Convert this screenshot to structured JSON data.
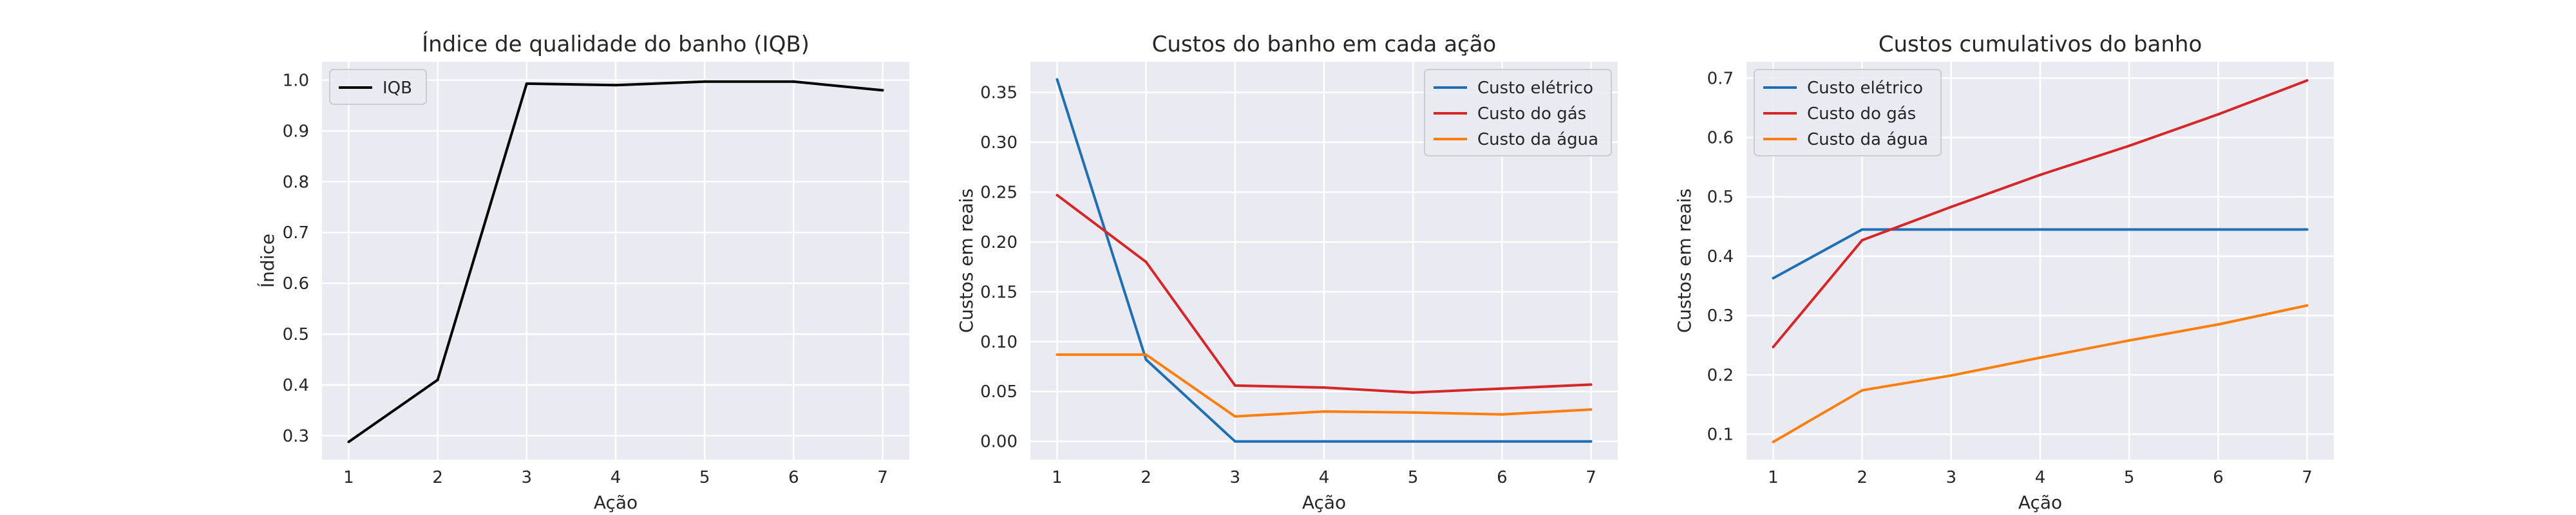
{
  "chart_data": [
    {
      "type": "line",
      "title": "Índice de qualidade do banho (IQB)",
      "xlabel": "Ação",
      "ylabel": "Índice",
      "x": [
        1,
        2,
        3,
        4,
        5,
        6,
        7
      ],
      "xlim": [
        0.7,
        7.3
      ],
      "ylim": [
        0.253,
        1.036
      ],
      "yticks": [
        0.3,
        0.4,
        0.5,
        0.6,
        0.7,
        0.8,
        0.9,
        1.0
      ],
      "ytick_labels": [
        "0.3",
        "0.4",
        "0.5",
        "0.6",
        "0.7",
        "0.8",
        "0.9",
        "1.0"
      ],
      "grid": true,
      "legend": "top-left",
      "series": [
        {
          "name": "IQB",
          "color": "#000000",
          "values": [
            0.288,
            0.41,
            0.993,
            0.99,
            0.997,
            0.997,
            0.98
          ]
        }
      ]
    },
    {
      "type": "line",
      "title": "Custos do banho em cada ação",
      "xlabel": "Ação",
      "ylabel": "Custos em reais",
      "x": [
        1,
        2,
        3,
        4,
        5,
        6,
        7
      ],
      "xlim": [
        0.7,
        7.3
      ],
      "ylim": [
        -0.0183,
        0.3807
      ],
      "yticks": [
        0.0,
        0.05,
        0.1,
        0.15,
        0.2,
        0.25,
        0.3,
        0.35
      ],
      "ytick_labels": [
        "0.00",
        "0.05",
        "0.10",
        "0.15",
        "0.20",
        "0.25",
        "0.30",
        "0.35"
      ],
      "grid": true,
      "legend": "top-right",
      "series": [
        {
          "name": "Custo elétrico",
          "color": "#1f6fb4",
          "values": [
            0.363,
            0.082,
            0.0,
            0.0,
            0.0,
            0.0,
            0.0
          ]
        },
        {
          "name": "Custo do gás",
          "color": "#d62728",
          "values": [
            0.247,
            0.18,
            0.056,
            0.054,
            0.049,
            0.053,
            0.057
          ]
        },
        {
          "name": "Custo da água",
          "color": "#ff7f0e",
          "values": [
            0.087,
            0.087,
            0.025,
            0.03,
            0.029,
            0.027,
            0.032
          ]
        }
      ]
    },
    {
      "type": "line",
      "title": "Custos cumulativos do banho",
      "xlabel": "Ação",
      "ylabel": "Custos em reais",
      "x": [
        1,
        2,
        3,
        4,
        5,
        6,
        7
      ],
      "xlim": [
        0.7,
        7.3
      ],
      "ylim": [
        0.0572,
        0.7275
      ],
      "yticks": [
        0.1,
        0.2,
        0.3,
        0.4,
        0.5,
        0.6,
        0.7
      ],
      "ytick_labels": [
        "0.1",
        "0.2",
        "0.3",
        "0.4",
        "0.5",
        "0.6",
        "0.7"
      ],
      "grid": true,
      "legend": "top-left",
      "series": [
        {
          "name": "Custo elétrico",
          "color": "#1f6fb4",
          "values": [
            0.363,
            0.445,
            0.445,
            0.445,
            0.445,
            0.445,
            0.445
          ]
        },
        {
          "name": "Custo do gás",
          "color": "#d62728",
          "values": [
            0.247,
            0.427,
            0.483,
            0.537,
            0.586,
            0.639,
            0.696
          ]
        },
        {
          "name": "Custo da água",
          "color": "#ff7f0e",
          "values": [
            0.087,
            0.174,
            0.199,
            0.229,
            0.258,
            0.285,
            0.317
          ]
        }
      ]
    }
  ]
}
